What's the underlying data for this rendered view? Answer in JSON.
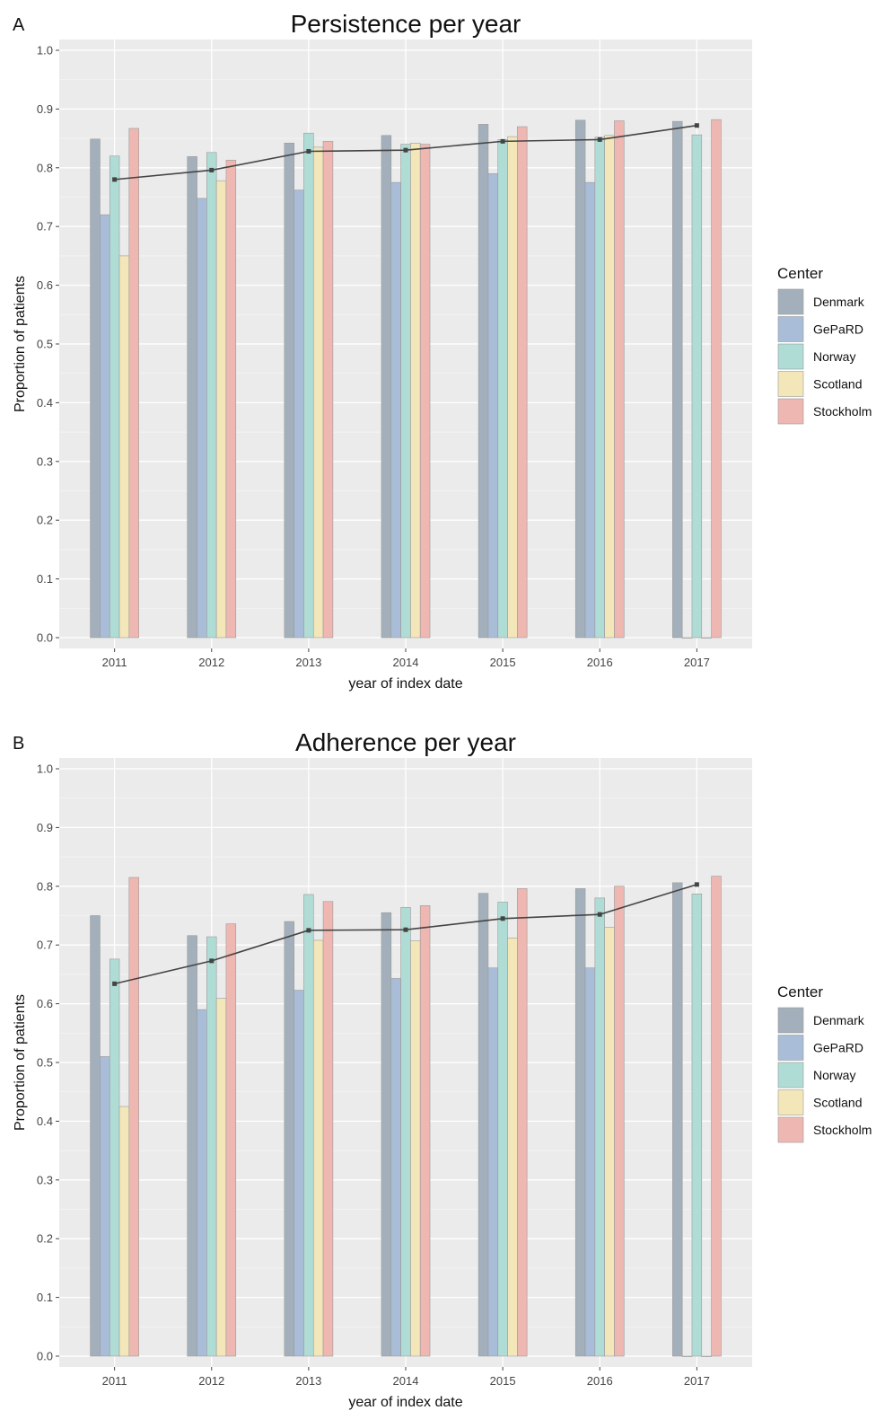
{
  "chart_data": [
    {
      "type": "bar",
      "panel_label": "A",
      "title": "Persistence per year",
      "xlabel": "year of index date",
      "ylabel": "Proportion of patients",
      "ylim": [
        0,
        1.0
      ],
      "yticks": [
        "0.0",
        "0.1",
        "0.2",
        "0.3",
        "0.4",
        "0.5",
        "0.6",
        "0.7",
        "0.8",
        "0.9",
        "1.0"
      ],
      "categories": [
        "2011",
        "2012",
        "2013",
        "2014",
        "2015",
        "2016",
        "2017"
      ],
      "grid": true,
      "legend_title": "Center",
      "legend_position": "right",
      "series": [
        {
          "name": "Denmark",
          "color": "#a3b0bb",
          "values": [
            0.849,
            0.819,
            0.842,
            0.855,
            0.874,
            0.881,
            0.879
          ]
        },
        {
          "name": "GePaRD",
          "color": "#a9bdd8",
          "values": [
            0.72,
            0.748,
            0.762,
            0.775,
            0.79,
            0.775,
            0.0
          ]
        },
        {
          "name": "Norway",
          "color": "#b0dcd6",
          "values": [
            0.82,
            0.826,
            0.859,
            0.84,
            0.848,
            0.852,
            0.856
          ]
        },
        {
          "name": "Scotland",
          "color": "#f3e6b8",
          "values": [
            0.65,
            0.778,
            0.835,
            0.842,
            0.853,
            0.855,
            0.0
          ]
        },
        {
          "name": "Stockholm",
          "color": "#efb7b2",
          "values": [
            0.867,
            0.813,
            0.845,
            0.84,
            0.87,
            0.88,
            0.882
          ]
        }
      ],
      "line": {
        "color": "#444444",
        "values": [
          0.78,
          0.796,
          0.828,
          0.83,
          0.845,
          0.848,
          0.872
        ]
      }
    },
    {
      "type": "bar",
      "panel_label": "B",
      "title": "Adherence per year",
      "xlabel": "year of index date",
      "ylabel": "Proportion of patients",
      "ylim": [
        0,
        1.0
      ],
      "yticks": [
        "0.0",
        "0.1",
        "0.2",
        "0.3",
        "0.4",
        "0.5",
        "0.6",
        "0.7",
        "0.8",
        "0.9",
        "1.0"
      ],
      "categories": [
        "2011",
        "2012",
        "2013",
        "2014",
        "2015",
        "2016",
        "2017"
      ],
      "grid": true,
      "legend_title": "Center",
      "legend_position": "right",
      "series": [
        {
          "name": "Denmark",
          "color": "#a3b0bb",
          "values": [
            0.75,
            0.716,
            0.74,
            0.755,
            0.788,
            0.796,
            0.806
          ]
        },
        {
          "name": "GePaRD",
          "color": "#a9bdd8",
          "values": [
            0.51,
            0.59,
            0.623,
            0.643,
            0.661,
            0.661,
            0.0
          ]
        },
        {
          "name": "Norway",
          "color": "#b0dcd6",
          "values": [
            0.676,
            0.714,
            0.786,
            0.764,
            0.773,
            0.78,
            0.787
          ]
        },
        {
          "name": "Scotland",
          "color": "#f3e6b8",
          "values": [
            0.425,
            0.609,
            0.708,
            0.707,
            0.712,
            0.73,
            0.0
          ]
        },
        {
          "name": "Stockholm",
          "color": "#efb7b2",
          "values": [
            0.815,
            0.736,
            0.774,
            0.767,
            0.796,
            0.8,
            0.817
          ]
        }
      ],
      "line": {
        "color": "#444444",
        "values": [
          0.634,
          0.673,
          0.725,
          0.726,
          0.745,
          0.752,
          0.803
        ]
      }
    }
  ]
}
